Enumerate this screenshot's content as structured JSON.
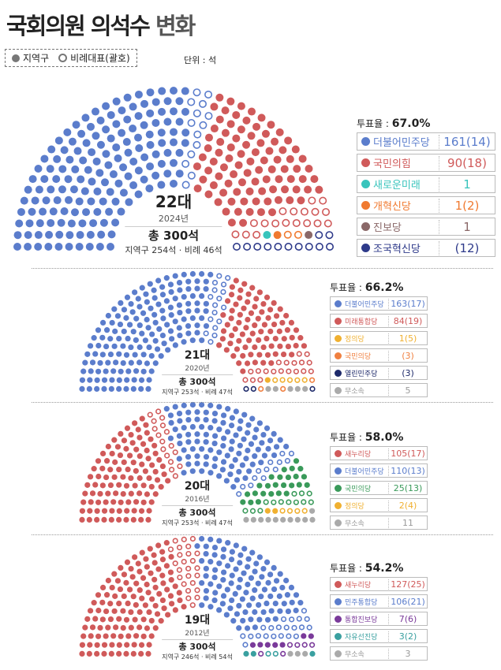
{
  "title": {
    "main": "국회의원 의석수",
    "accent": "변화"
  },
  "legend": {
    "district": "지역구",
    "pr": "비례대표(괄호)",
    "unit": "단위 : 석"
  },
  "chart_data": [
    {
      "type": "parliament",
      "era": "22대",
      "year": "2024년",
      "total": "총 300석",
      "breakdown": "지역구 254석 · 비례 46석",
      "turnout_label": "투표율 : ",
      "turnout": "67.0%",
      "parties": [
        {
          "name": "더불어민주당",
          "label": "161(14)",
          "district": 161,
          "pr": 14,
          "color": "#5b7dcc"
        },
        {
          "name": "국민의힘",
          "label": "90(18)",
          "district": 90,
          "pr": 18,
          "color": "#d05a5a"
        },
        {
          "name": "새로운미래",
          "label": "1",
          "district": 1,
          "pr": 0,
          "color": "#38c4bc"
        },
        {
          "name": "개혁신당",
          "label": "1(2)",
          "district": 1,
          "pr": 2,
          "color": "#f07a30"
        },
        {
          "name": "진보당",
          "label": "1",
          "district": 1,
          "pr": 0,
          "color": "#8a6868"
        },
        {
          "name": "조국혁신당",
          "label": "(12)",
          "district": 0,
          "pr": 12,
          "color": "#2e3a8a"
        }
      ]
    },
    {
      "type": "parliament",
      "era": "21대",
      "year": "2020년",
      "total": "총 300석",
      "breakdown": "지역구 253석 · 비례 47석",
      "turnout_label": "투표율 : ",
      "turnout": "66.2%",
      "parties": [
        {
          "name": "더불어민주당",
          "label": "163(17)",
          "district": 163,
          "pr": 17,
          "color": "#5b7dcc"
        },
        {
          "name": "미래통합당",
          "label": "84(19)",
          "district": 84,
          "pr": 19,
          "color": "#d05a5a"
        },
        {
          "name": "정의당",
          "label": "1(5)",
          "district": 1,
          "pr": 5,
          "color": "#f0b030"
        },
        {
          "name": "국민의당",
          "label": "(3)",
          "district": 0,
          "pr": 3,
          "color": "#f08040"
        },
        {
          "name": "열린민주당",
          "label": "(3)",
          "district": 0,
          "pr": 3,
          "color": "#1e2a6a"
        },
        {
          "name": "무소속",
          "label": "5",
          "district": 5,
          "pr": 0,
          "color": "#aaaaaa"
        }
      ]
    },
    {
      "type": "parliament",
      "era": "20대",
      "year": "2016년",
      "total": "총 300석",
      "breakdown": "지역구 253석 · 비례 47석",
      "turnout_label": "투표율 : ",
      "turnout": "58.0%",
      "parties": [
        {
          "name": "새누리당",
          "label": "105(17)",
          "district": 105,
          "pr": 17,
          "color": "#d05a5a"
        },
        {
          "name": "더불어민주당",
          "label": "110(13)",
          "district": 110,
          "pr": 13,
          "color": "#5b7dcc"
        },
        {
          "name": "국민의당",
          "label": "25(13)",
          "district": 25,
          "pr": 13,
          "color": "#3a9a5a"
        },
        {
          "name": "정의당",
          "label": "2(4)",
          "district": 2,
          "pr": 4,
          "color": "#f0b030"
        },
        {
          "name": "무소속",
          "label": "11",
          "district": 11,
          "pr": 0,
          "color": "#aaaaaa"
        }
      ]
    },
    {
      "type": "parliament",
      "era": "19대",
      "year": "2012년",
      "total": "총 300석",
      "breakdown": "지역구 246석 · 비례 54석",
      "turnout_label": "투표율 : ",
      "turnout": "54.2%",
      "parties": [
        {
          "name": "새누리당",
          "label": "127(25)",
          "district": 127,
          "pr": 25,
          "color": "#d05a5a"
        },
        {
          "name": "민주통합당",
          "label": "106(21)",
          "district": 106,
          "pr": 21,
          "color": "#5b7dcc"
        },
        {
          "name": "통합진보당",
          "label": "7(6)",
          "district": 7,
          "pr": 6,
          "color": "#7a3a9a"
        },
        {
          "name": "자유선진당",
          "label": "3(2)",
          "district": 3,
          "pr": 2,
          "color": "#3aa0a0"
        },
        {
          "name": "무소속",
          "label": "3",
          "district": 3,
          "pr": 0,
          "color": "#aaaaaa"
        }
      ]
    }
  ]
}
